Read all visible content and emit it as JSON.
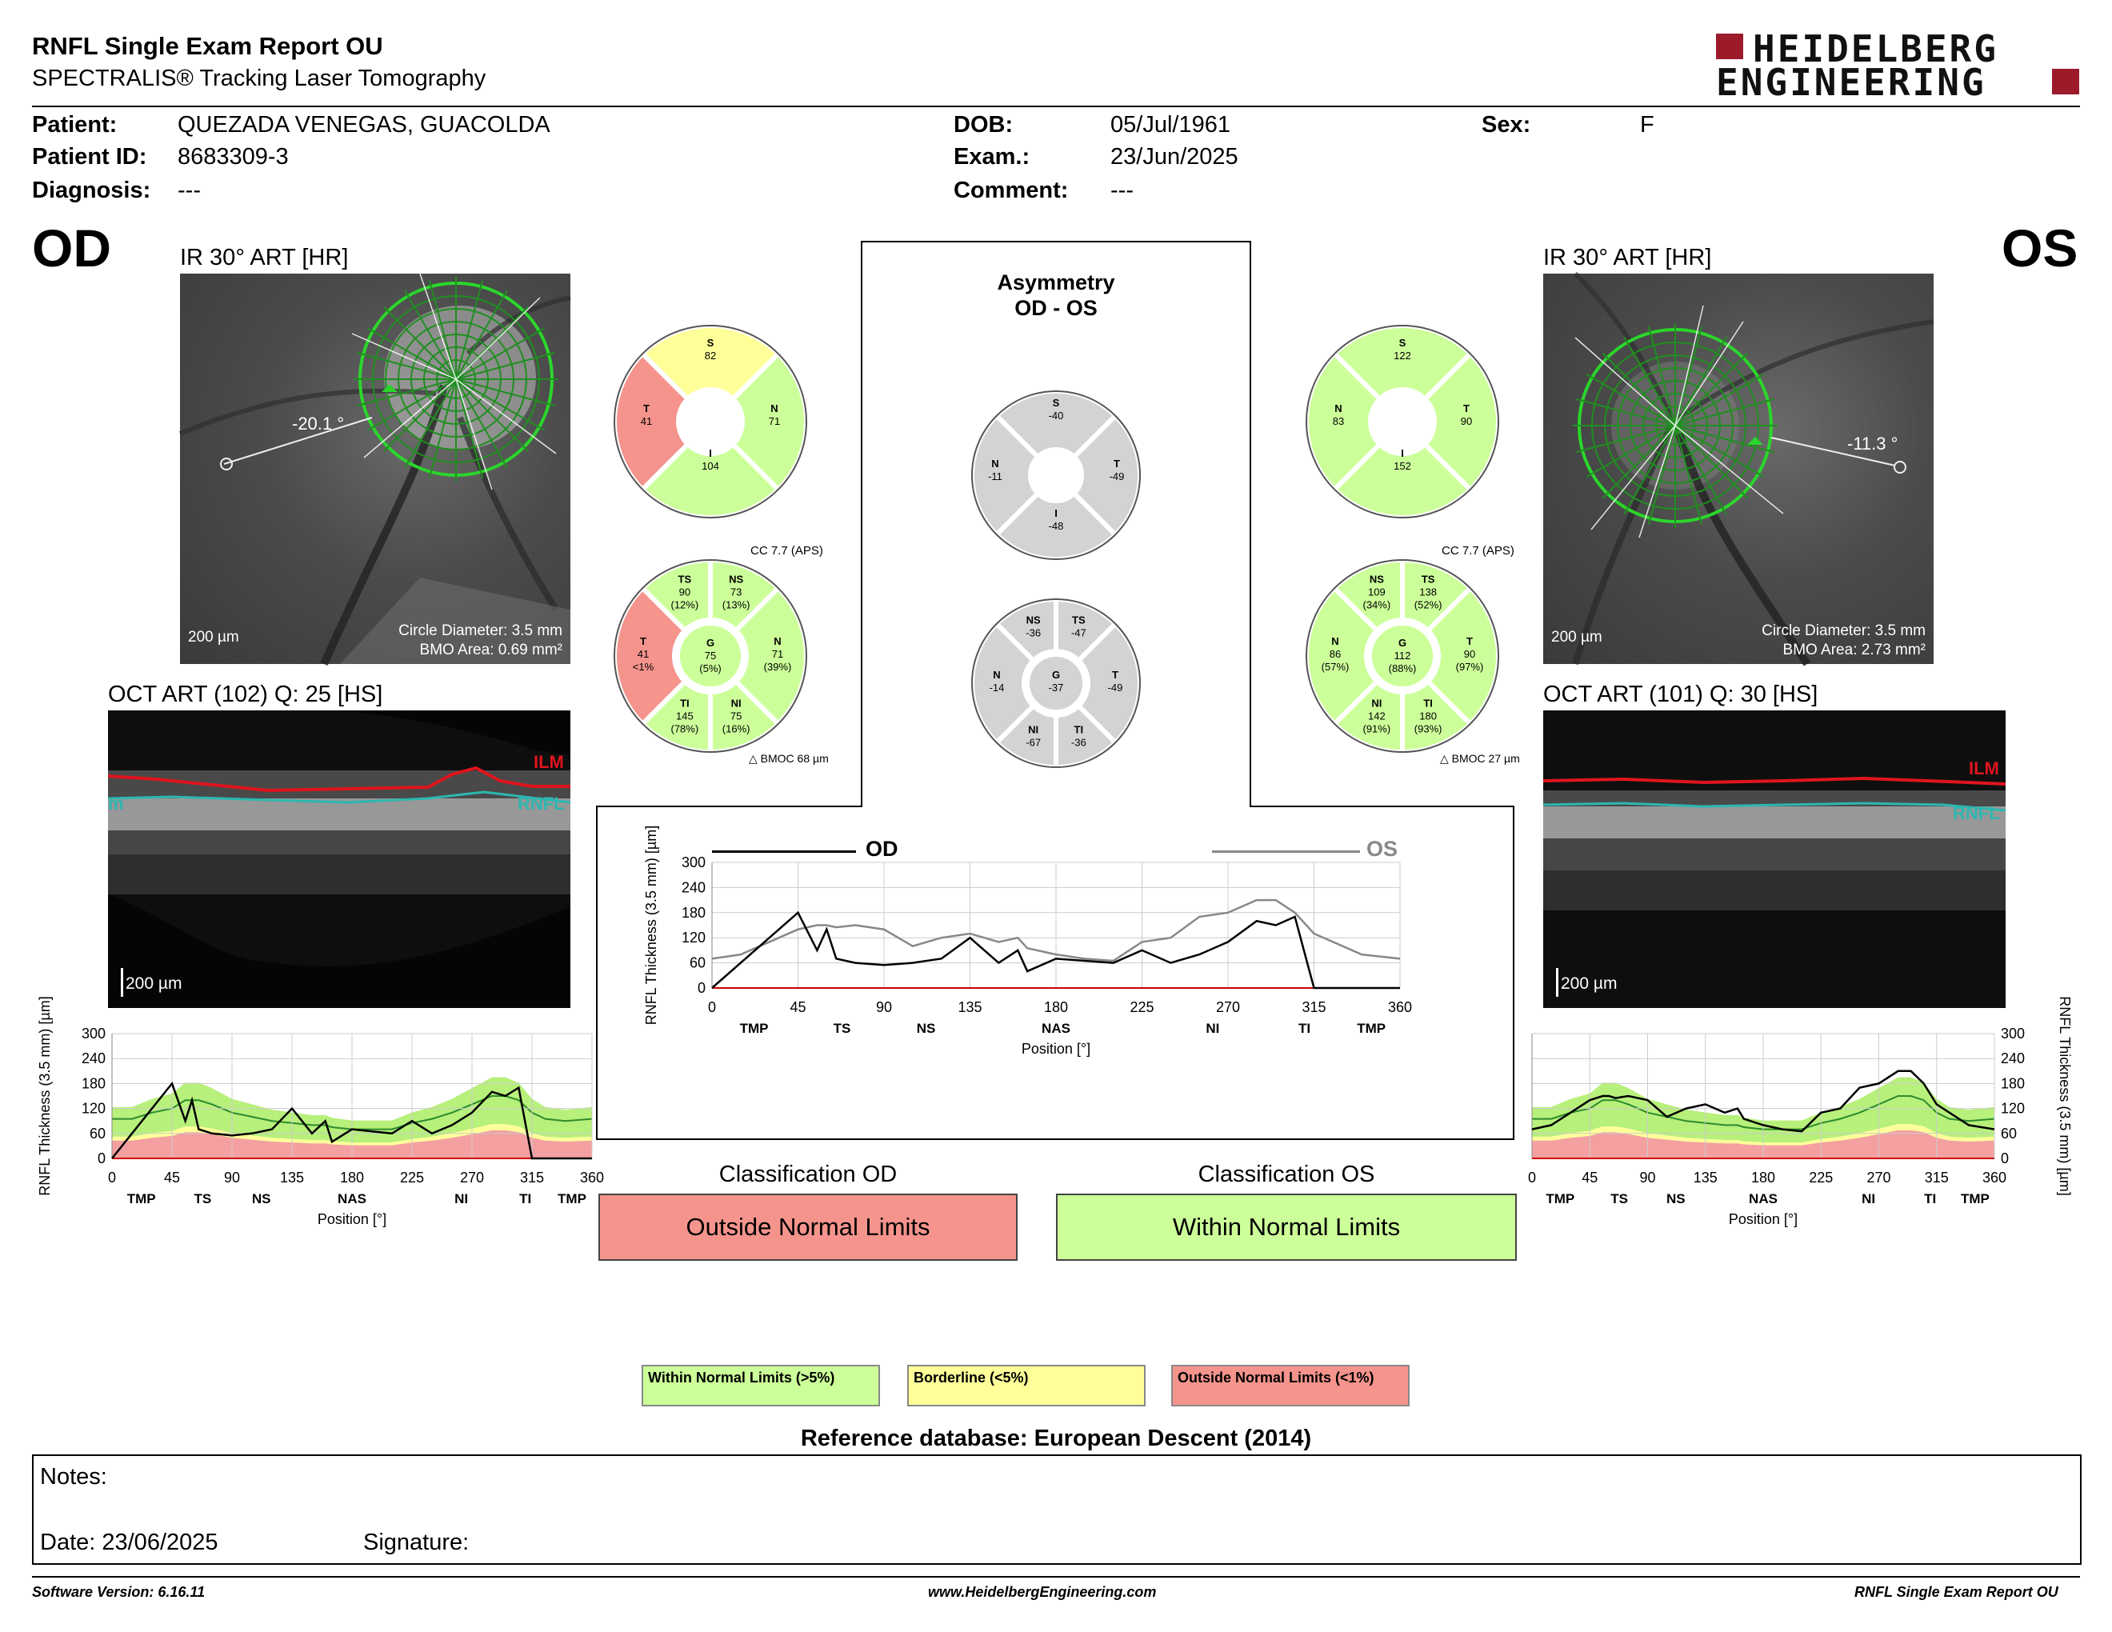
{
  "header": {
    "title": "RNFL Single Exam Report OU",
    "subtitle": "SPECTRALIS® Tracking Laser Tomography",
    "logo_line1": "HEIDELBERG",
    "logo_line2": "ENGINEERING"
  },
  "patient": {
    "patient_label": "Patient:",
    "patient_value": "QUEZADA VENEGAS, GUACOLDA",
    "id_label": "Patient ID:",
    "id_value": "8683309-3",
    "diagnosis_label": "Diagnosis:",
    "diagnosis_value": "---",
    "dob_label": "DOB:",
    "dob_value": "05/Jul/1961",
    "exam_label": "Exam.:",
    "exam_value": "23/Jun/2025",
    "comment_label": "Comment:",
    "comment_value": "---",
    "sex_label": "Sex:",
    "sex_value": "F"
  },
  "od": {
    "eye": "OD",
    "ir_title": "IR 30° ART [HR]",
    "angle": "-20.1 °",
    "scale": "200 µm",
    "circle": "Circle Diameter: 3.5 mm",
    "bmo": "BMO Area: 0.69 mm²",
    "oct_title": "OCT ART (102) Q: 25 [HS]",
    "oct_scale": "200 µm",
    "ilm": "ILM",
    "rnfl": "RNFL",
    "rnfl_left_stub": "m",
    "quad": {
      "S": "82",
      "N": "71",
      "I": "104",
      "T": "41"
    },
    "cc": "CC 7.7 (APS)",
    "sect": {
      "TS": [
        "90",
        "(12%)"
      ],
      "NS": [
        "73",
        "(13%)"
      ],
      "N": [
        "71",
        "(39%)"
      ],
      "NI": [
        "75",
        "(16%)"
      ],
      "TI": [
        "145",
        "(78%)"
      ],
      "T": [
        "41",
        "<1%"
      ],
      "G": [
        "75",
        "(5%)"
      ]
    },
    "bmoc": "BMOC 68 µm",
    "classification_title": "Classification OD",
    "classification": "Outside Normal Limits"
  },
  "os": {
    "eye": "OS",
    "ir_title": "IR 30° ART [HR]",
    "angle": "-11.3 °",
    "scale": "200 µm",
    "circle": "Circle Diameter: 3.5 mm",
    "bmo": "BMO Area: 2.73 mm²",
    "oct_title": "OCT ART (101) Q: 30 [HS]",
    "oct_scale": "200 µm",
    "ilm": "ILM",
    "rnfl": "RNFL",
    "quad": {
      "S": "122",
      "N": "83",
      "I": "152",
      "T": "90"
    },
    "cc": "CC 7.7 (APS)",
    "sect": {
      "NS": [
        "109",
        "(34%)"
      ],
      "TS": [
        "138",
        "(52%)"
      ],
      "N": [
        "86",
        "(57%)"
      ],
      "T": [
        "90",
        "(97%)"
      ],
      "NI": [
        "142",
        "(91%)"
      ],
      "TI": [
        "180",
        "(93%)"
      ],
      "G": [
        "112",
        "(88%)"
      ]
    },
    "bmoc": "BMOC 27 µm",
    "classification_title": "Classification OS",
    "classification": "Within Normal Limits"
  },
  "asym": {
    "title1": "Asymmetry",
    "title2": "OD - OS",
    "quad": {
      "S": "-40",
      "N": "-11",
      "T": "-49",
      "I": "-48"
    },
    "sect": {
      "NS": "-36",
      "TS": "-47",
      "N": "-14",
      "G": "-37",
      "T": "-49",
      "NI": "-67",
      "TI": "-36"
    }
  },
  "chart_labels": {
    "od_legend": "OD",
    "os_legend": "OS",
    "ylabel": "RNFL Thickness (3.5 mm) [µm]",
    "xlabel": "Position [°]",
    "xticks": [
      "0",
      "45",
      "90",
      "135",
      "180",
      "225",
      "270",
      "315",
      "360"
    ],
    "yticks": [
      "0",
      "60",
      "120",
      "180",
      "240",
      "300"
    ],
    "sectors": [
      "TMP",
      "TS",
      "NS",
      "NAS",
      "NI",
      "TI",
      "TMP"
    ]
  },
  "chart_data": [
    {
      "type": "line",
      "title": "",
      "xlabel": "Position [°]",
      "ylabel": "RNFL Thickness (3.5 mm) [µm]",
      "xlim": [
        0,
        360
      ],
      "ylim": [
        0,
        300
      ],
      "x": [
        0,
        15,
        30,
        45,
        55,
        60,
        65,
        75,
        90,
        105,
        120,
        135,
        150,
        160,
        165,
        180,
        195,
        210,
        225,
        240,
        255,
        270,
        285,
        295,
        305,
        315,
        325,
        340,
        360
      ],
      "series": [
        {
          "name": "OD",
          "values": [
            0,
            60,
            120,
            180,
            90,
            140,
            70,
            60,
            55,
            60,
            70,
            120,
            60,
            90,
            40,
            70,
            65,
            60,
            90,
            60,
            80,
            110,
            160,
            150,
            170,
            0,
            0,
            0,
            0
          ]
        },
        {
          "name": "OS",
          "values": [
            70,
            80,
            110,
            140,
            150,
            150,
            145,
            150,
            140,
            100,
            120,
            130,
            110,
            120,
            95,
            80,
            70,
            65,
            110,
            120,
            170,
            180,
            210,
            210,
            180,
            130,
            110,
            80,
            70
          ]
        }
      ]
    },
    {
      "type": "line",
      "title": "",
      "xlabel": "Position [°]",
      "ylabel": "RNFL Thickness (3.5 mm) [µm]",
      "xlim": [
        0,
        360
      ],
      "ylim": [
        0,
        300
      ],
      "x": [
        0,
        15,
        30,
        45,
        55,
        60,
        65,
        75,
        90,
        105,
        120,
        135,
        150,
        160,
        165,
        180,
        195,
        210,
        225,
        240,
        255,
        270,
        285,
        295,
        305,
        315,
        325,
        340,
        360
      ],
      "series": [
        {
          "name": "OD",
          "values": [
            0,
            60,
            120,
            180,
            90,
            140,
            70,
            60,
            55,
            60,
            70,
            120,
            60,
            90,
            40,
            70,
            65,
            60,
            90,
            60,
            80,
            110,
            160,
            150,
            170,
            0,
            0,
            0,
            0
          ]
        }
      ]
    },
    {
      "type": "line",
      "title": "",
      "xlabel": "Position [°]",
      "ylabel": "RNFL Thickness (3.5 mm) [µm]",
      "xlim": [
        0,
        360
      ],
      "ylim": [
        0,
        300
      ],
      "x": [
        0,
        15,
        30,
        45,
        55,
        60,
        65,
        75,
        90,
        105,
        120,
        135,
        150,
        160,
        165,
        180,
        195,
        210,
        225,
        240,
        255,
        270,
        285,
        295,
        305,
        315,
        325,
        340,
        360
      ],
      "series": [
        {
          "name": "OS",
          "values": [
            70,
            80,
            110,
            140,
            150,
            150,
            145,
            150,
            140,
            100,
            120,
            130,
            110,
            120,
            95,
            80,
            70,
            65,
            110,
            120,
            170,
            180,
            210,
            210,
            180,
            130,
            110,
            80,
            70
          ]
        }
      ]
    }
  ],
  "legend": {
    "within": "Within Normal Limits (>5%)",
    "border": "Borderline (<5%)",
    "outside": "Outside Normal Limits (<1%)",
    "ref": "Reference database: European Descent (2014)"
  },
  "notes": {
    "notes_label": "Notes:",
    "date_label": "Date: 23/06/2025",
    "sig_label": "Signature:"
  },
  "footer": {
    "version": "Software Version: 6.16.11",
    "url": "www.HeidelbergEngineering.com",
    "report": "RNFL Single Exam Report OU"
  },
  "colors": {
    "green": "#ccff99",
    "yellow": "#ffff99",
    "red": "#f4948c",
    "gray": "#d3d3d3",
    "chart_green": "#b7f07a",
    "chart_red": "#f4a0a0"
  }
}
